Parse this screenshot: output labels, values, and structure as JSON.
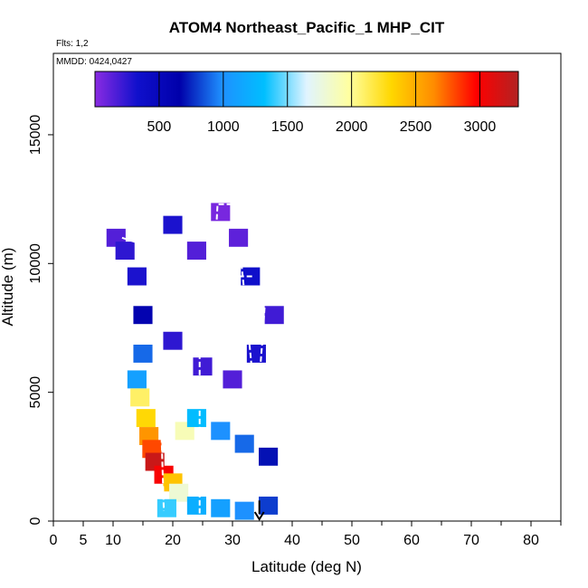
{
  "chart_data": {
    "type": "heatmap",
    "title": "ATOM4 Northeast_Pacific_1 MHP_CIT",
    "flights_note": "Flts: 1,2",
    "date_note": "MMDD: 0424,0427",
    "xlabel": "Latitude (deg N)",
    "ylabel": "Altitude (m)",
    "xlim": [
      0,
      85
    ],
    "ylim": [
      0,
      18000
    ],
    "x_ticks": [
      0,
      5,
      10,
      20,
      30,
      40,
      50,
      60,
      70,
      80
    ],
    "y_ticks": [
      0,
      5000,
      10000,
      15000
    ],
    "colorbar": {
      "range": [
        0,
        3300
      ],
      "ticks": [
        500,
        1000,
        1500,
        2000,
        2500,
        3000
      ],
      "colors": [
        "#8a2be2",
        "#1010cc",
        "#0000aa",
        "#1e90ff",
        "#00bfff",
        "#e0f4ff",
        "#ffffa0",
        "#ffd700",
        "#ff8c00",
        "#ff0000",
        "#b22222"
      ]
    },
    "marker": {
      "latitude": 34.5,
      "altitude": 0,
      "label": "arrow"
    },
    "cells": [
      {
        "lat": 10.5,
        "alt": 11000,
        "value": 150
      },
      {
        "lat": 12,
        "alt": 10500,
        "value": 250
      },
      {
        "lat": 14,
        "alt": 9500,
        "value": 300
      },
      {
        "lat": 15,
        "alt": 8000,
        "value": 600
      },
      {
        "lat": 15,
        "alt": 6500,
        "value": 900
      },
      {
        "lat": 14,
        "alt": 5500,
        "value": 1100
      },
      {
        "lat": 14.5,
        "alt": 4800,
        "value": 2100
      },
      {
        "lat": 15.5,
        "alt": 4000,
        "value": 2300
      },
      {
        "lat": 16,
        "alt": 3300,
        "value": 2600
      },
      {
        "lat": 16.5,
        "alt": 2800,
        "value": 2800
      },
      {
        "lat": 17,
        "alt": 2300,
        "value": 3200
      },
      {
        "lat": 18.5,
        "alt": 1800,
        "value": 3000
      },
      {
        "lat": 20,
        "alt": 1500,
        "value": 2400
      },
      {
        "lat": 21,
        "alt": 1100,
        "value": 1800
      },
      {
        "lat": 19,
        "alt": 500,
        "value": 1400
      },
      {
        "lat": 24,
        "alt": 600,
        "value": 1200
      },
      {
        "lat": 28,
        "alt": 500,
        "value": 1100
      },
      {
        "lat": 32,
        "alt": 400,
        "value": 1000
      },
      {
        "lat": 36,
        "alt": 600,
        "value": 800
      },
      {
        "lat": 22,
        "alt": 3500,
        "value": 1900
      },
      {
        "lat": 24,
        "alt": 4000,
        "value": 1300
      },
      {
        "lat": 28,
        "alt": 3500,
        "value": 1000
      },
      {
        "lat": 32,
        "alt": 3000,
        "value": 900
      },
      {
        "lat": 36,
        "alt": 2500,
        "value": 700
      },
      {
        "lat": 20,
        "alt": 7000,
        "value": 250
      },
      {
        "lat": 25,
        "alt": 6000,
        "value": 200
      },
      {
        "lat": 30,
        "alt": 5500,
        "value": 150
      },
      {
        "lat": 34,
        "alt": 6500,
        "value": 300
      },
      {
        "lat": 37,
        "alt": 8000,
        "value": 200
      },
      {
        "lat": 20,
        "alt": 11500,
        "value": 300
      },
      {
        "lat": 24,
        "alt": 10500,
        "value": 150
      },
      {
        "lat": 28,
        "alt": 12000,
        "value": 50
      },
      {
        "lat": 31,
        "alt": 11000,
        "value": 120
      },
      {
        "lat": 33,
        "alt": 9500,
        "value": 350
      }
    ]
  }
}
